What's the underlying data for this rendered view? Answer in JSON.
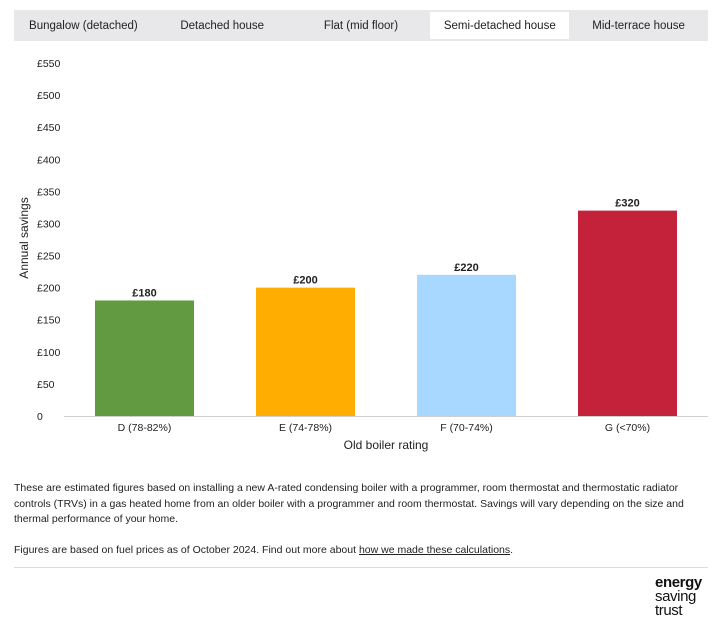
{
  "tabs": [
    {
      "label": "Bungalow (detached)",
      "active": false
    },
    {
      "label": "Detached house",
      "active": false
    },
    {
      "label": "Flat (mid floor)",
      "active": false
    },
    {
      "label": "Semi-detached house",
      "active": true
    },
    {
      "label": "Mid-terrace house",
      "active": false
    }
  ],
  "chart_data": {
    "type": "bar",
    "categories": [
      "D (78-82%)",
      "E (74-78%)",
      "F (70-74%)",
      "G (<70%)"
    ],
    "values": [
      180,
      200,
      220,
      320
    ],
    "data_labels": [
      "£180",
      "£200",
      "£220",
      "£320"
    ],
    "bar_colors": [
      "#629a42",
      "#ffad00",
      "#a8d8ff",
      "#c4223b"
    ],
    "xlabel": "Old boiler rating",
    "ylabel": "Annual savings",
    "ylim": [
      0,
      550
    ],
    "yticks": [
      0,
      50,
      100,
      150,
      200,
      250,
      300,
      350,
      400,
      450,
      500,
      550
    ],
    "ytick_labels": [
      "0",
      "£50",
      "£100",
      "£150",
      "£200",
      "£250",
      "£300",
      "£350",
      "£400",
      "£450",
      "£500",
      "£550"
    ],
    "grid": false,
    "legend": "none"
  },
  "notes": {
    "paragraph1": "These are estimated figures based on installing a new A-rated condensing boiler with a programmer, room thermostat and thermostatic radiator controls (TRVs) in a gas heated home from an older boiler with a programmer and room thermostat. Savings will vary depending on the size and thermal performance of your home.",
    "paragraph2_prefix": "Figures are based on fuel prices as of October 2024. Find out more about ",
    "paragraph2_link": "how we made these calculations",
    "paragraph2_suffix": "."
  },
  "logo": {
    "line1": "energy",
    "line2": "saving",
    "line3": "trust"
  }
}
